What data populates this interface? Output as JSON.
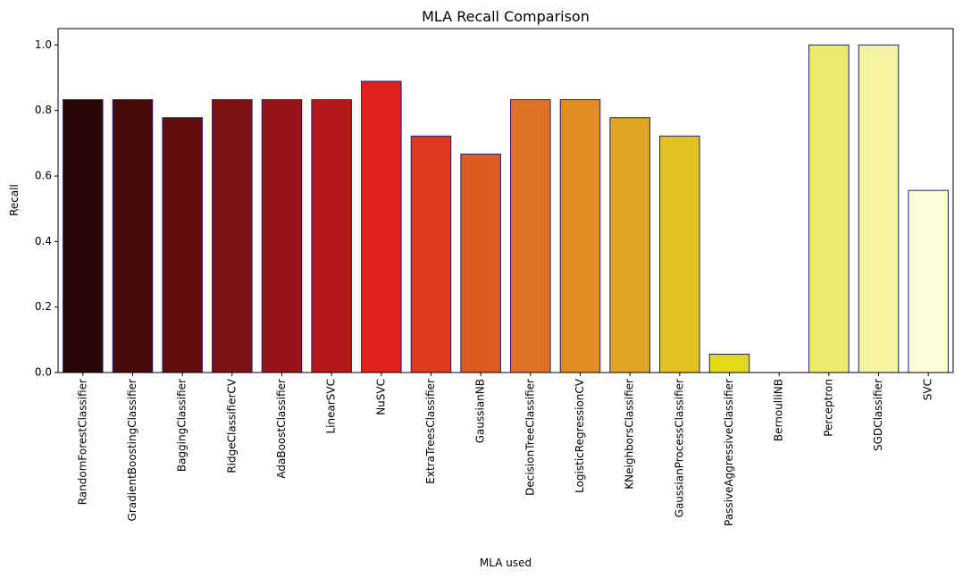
{
  "chart_data": {
    "type": "bar",
    "title": "MLA Recall Comparison",
    "xlabel": "MLA used",
    "ylabel": "Recall",
    "ylim": [
      0,
      1.05
    ],
    "yticks": [
      "0.0",
      "0.2",
      "0.4",
      "0.6",
      "0.8",
      "1.0"
    ],
    "grid": false,
    "categories": [
      "RandomForestClassifier",
      "GradientBoostingClassifier",
      "BaggingClassifier",
      "RidgeClassifierCV",
      "AdaBoostClassifier",
      "LinearSVC",
      "NuSVC",
      "ExtraTreesClassifier",
      "GaussianNB",
      "DecisionTreeClassifier",
      "LogisticRegressionCV",
      "KNeighborsClassifier",
      "GaussianProcessClassifier",
      "PassiveAggressiveClassifier",
      "BernoulliNB",
      "Perceptron",
      "SGDClassifier",
      "SVC"
    ],
    "values": [
      0.833,
      0.833,
      0.778,
      0.833,
      0.833,
      0.833,
      0.889,
      0.722,
      0.667,
      0.833,
      0.833,
      0.778,
      0.722,
      0.056,
      0.0,
      1.0,
      1.0,
      0.556
    ],
    "colors": [
      "#2a0606",
      "#470a0b",
      "#620e0f",
      "#7d1213",
      "#981517",
      "#b4181a",
      "#e0201c",
      "#e0391e",
      "#de5a22",
      "#e07225",
      "#e08e24",
      "#e0a524",
      "#e1c022",
      "#e0da1b",
      "#ebe63a",
      "#ecea6d",
      "#f4f3a0",
      "#fcfcd8"
    ],
    "edge_color": "#1b1f7a"
  }
}
